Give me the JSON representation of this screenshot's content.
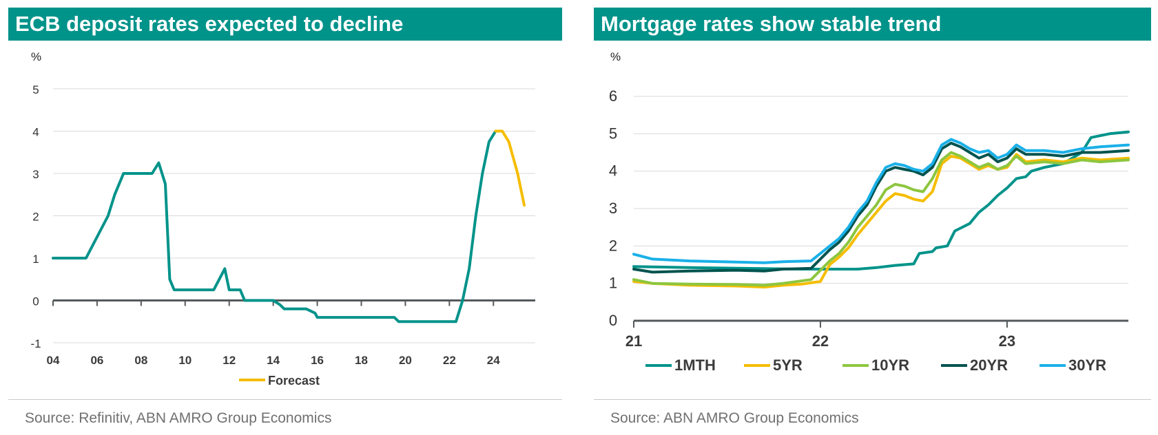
{
  "left": {
    "title": "ECB deposit rates expected to decline",
    "source": "Source: Refinitiv, ABN AMRO Group Economics"
  },
  "right": {
    "title": "Mortgage rates show stable trend",
    "source": "Source: ABN AMRO Group Economics"
  },
  "chart_data": [
    {
      "type": "line",
      "title": "ECB deposit rates expected to decline",
      "ylabel": "%",
      "xlabel": "",
      "xlim": [
        2004,
        2025.9
      ],
      "ylim": [
        -1,
        5
      ],
      "yticks": [
        -1,
        0,
        1,
        2,
        3,
        4,
        5
      ],
      "xticks": [
        2004,
        2006,
        2008,
        2010,
        2012,
        2014,
        2016,
        2018,
        2020,
        2022,
        2024
      ],
      "xtick_labels": [
        "04",
        "06",
        "08",
        "10",
        "12",
        "14",
        "16",
        "18",
        "20",
        "22",
        "24"
      ],
      "grid": true,
      "legend_position": "bottom",
      "series": [
        {
          "name": "",
          "color": "#00938a",
          "points": [
            [
              2004.0,
              1.0
            ],
            [
              2005.5,
              1.0
            ],
            [
              2006.5,
              2.0
            ],
            [
              2006.8,
              2.5
            ],
            [
              2007.2,
              3.0
            ],
            [
              2008.0,
              3.0
            ],
            [
              2008.5,
              3.0
            ],
            [
              2008.8,
              3.25
            ],
            [
              2009.1,
              2.75
            ],
            [
              2009.3,
              0.5
            ],
            [
              2009.5,
              0.25
            ],
            [
              2011.3,
              0.25
            ],
            [
              2011.8,
              0.75
            ],
            [
              2012.0,
              0.25
            ],
            [
              2012.5,
              0.25
            ],
            [
              2012.7,
              0.0
            ],
            [
              2014.0,
              0.0
            ],
            [
              2014.3,
              -0.1
            ],
            [
              2014.5,
              -0.2
            ],
            [
              2015.5,
              -0.2
            ],
            [
              2015.9,
              -0.3
            ],
            [
              2016.0,
              -0.4
            ],
            [
              2019.5,
              -0.4
            ],
            [
              2019.7,
              -0.5
            ],
            [
              2022.3,
              -0.5
            ],
            [
              2022.6,
              0.0
            ],
            [
              2022.9,
              0.75
            ],
            [
              2023.2,
              2.0
            ],
            [
              2023.5,
              3.0
            ],
            [
              2023.8,
              3.75
            ],
            [
              2024.1,
              4.0
            ]
          ]
        },
        {
          "name": "Forecast",
          "color": "#f5bd00",
          "points": [
            [
              2024.1,
              4.0
            ],
            [
              2024.4,
              4.0
            ],
            [
              2024.7,
              3.75
            ],
            [
              2025.1,
              3.0
            ],
            [
              2025.4,
              2.25
            ]
          ]
        }
      ]
    },
    {
      "type": "line",
      "title": "Mortgage rates show stable trend",
      "ylabel": "%",
      "xlabel": "",
      "xlim": [
        2021,
        2023.65
      ],
      "ylim": [
        0,
        6
      ],
      "yticks": [
        0,
        1,
        2,
        3,
        4,
        5,
        6
      ],
      "xticks": [
        2021,
        2022,
        2023
      ],
      "xtick_labels": [
        "21",
        "22",
        "23"
      ],
      "grid": true,
      "legend_position": "bottom",
      "series": [
        {
          "name": "1MTH",
          "color": "#00938a",
          "points": [
            [
              2021.0,
              1.45
            ],
            [
              2021.3,
              1.42
            ],
            [
              2021.6,
              1.4
            ],
            [
              2021.9,
              1.38
            ],
            [
              2022.0,
              1.38
            ],
            [
              2022.2,
              1.38
            ],
            [
              2022.3,
              1.42
            ],
            [
              2022.4,
              1.48
            ],
            [
              2022.5,
              1.52
            ],
            [
              2022.53,
              1.8
            ],
            [
              2022.6,
              1.85
            ],
            [
              2022.62,
              1.95
            ],
            [
              2022.68,
              2.0
            ],
            [
              2022.72,
              2.4
            ],
            [
              2022.8,
              2.6
            ],
            [
              2022.85,
              2.9
            ],
            [
              2022.9,
              3.1
            ],
            [
              2022.95,
              3.35
            ],
            [
              2023.0,
              3.55
            ],
            [
              2023.05,
              3.8
            ],
            [
              2023.1,
              3.85
            ],
            [
              2023.13,
              4.0
            ],
            [
              2023.2,
              4.1
            ],
            [
              2023.3,
              4.2
            ],
            [
              2023.4,
              4.5
            ],
            [
              2023.45,
              4.9
            ],
            [
              2023.55,
              5.0
            ],
            [
              2023.65,
              5.05
            ]
          ]
        },
        {
          "name": "5YR",
          "color": "#f5bd00",
          "points": [
            [
              2021.0,
              1.05
            ],
            [
              2021.1,
              1.0
            ],
            [
              2021.3,
              0.95
            ],
            [
              2021.55,
              0.93
            ],
            [
              2021.7,
              0.9
            ],
            [
              2021.8,
              0.95
            ],
            [
              2021.9,
              0.98
            ],
            [
              2022.0,
              1.05
            ],
            [
              2022.05,
              1.5
            ],
            [
              2022.1,
              1.7
            ],
            [
              2022.15,
              1.95
            ],
            [
              2022.2,
              2.3
            ],
            [
              2022.25,
              2.6
            ],
            [
              2022.3,
              2.9
            ],
            [
              2022.35,
              3.2
            ],
            [
              2022.4,
              3.4
            ],
            [
              2022.45,
              3.35
            ],
            [
              2022.5,
              3.25
            ],
            [
              2022.55,
              3.2
            ],
            [
              2022.6,
              3.45
            ],
            [
              2022.65,
              4.2
            ],
            [
              2022.7,
              4.4
            ],
            [
              2022.75,
              4.35
            ],
            [
              2022.8,
              4.2
            ],
            [
              2022.85,
              4.05
            ],
            [
              2022.9,
              4.15
            ],
            [
              2022.95,
              4.05
            ],
            [
              2023.0,
              4.1
            ],
            [
              2023.05,
              4.45
            ],
            [
              2023.1,
              4.25
            ],
            [
              2023.2,
              4.3
            ],
            [
              2023.3,
              4.25
            ],
            [
              2023.4,
              4.35
            ],
            [
              2023.5,
              4.3
            ],
            [
              2023.65,
              4.35
            ]
          ]
        },
        {
          "name": "10YR",
          "color": "#8dc63f",
          "points": [
            [
              2021.0,
              1.1
            ],
            [
              2021.1,
              1.0
            ],
            [
              2021.3,
              0.98
            ],
            [
              2021.55,
              0.97
            ],
            [
              2021.7,
              0.95
            ],
            [
              2021.8,
              1.0
            ],
            [
              2021.95,
              1.1
            ],
            [
              2022.05,
              1.6
            ],
            [
              2022.1,
              1.8
            ],
            [
              2022.15,
              2.1
            ],
            [
              2022.2,
              2.5
            ],
            [
              2022.25,
              2.8
            ],
            [
              2022.3,
              3.1
            ],
            [
              2022.35,
              3.5
            ],
            [
              2022.4,
              3.65
            ],
            [
              2022.45,
              3.6
            ],
            [
              2022.5,
              3.5
            ],
            [
              2022.55,
              3.45
            ],
            [
              2022.6,
              3.8
            ],
            [
              2022.65,
              4.3
            ],
            [
              2022.7,
              4.5
            ],
            [
              2022.75,
              4.4
            ],
            [
              2022.8,
              4.25
            ],
            [
              2022.85,
              4.1
            ],
            [
              2022.9,
              4.2
            ],
            [
              2022.95,
              4.05
            ],
            [
              2023.0,
              4.15
            ],
            [
              2023.05,
              4.4
            ],
            [
              2023.1,
              4.2
            ],
            [
              2023.2,
              4.25
            ],
            [
              2023.3,
              4.2
            ],
            [
              2023.4,
              4.3
            ],
            [
              2023.5,
              4.25
            ],
            [
              2023.65,
              4.3
            ]
          ]
        },
        {
          "name": "20YR",
          "color": "#00534f",
          "points": [
            [
              2021.0,
              1.38
            ],
            [
              2021.1,
              1.3
            ],
            [
              2021.3,
              1.33
            ],
            [
              2021.55,
              1.35
            ],
            [
              2021.7,
              1.33
            ],
            [
              2021.8,
              1.38
            ],
            [
              2021.95,
              1.4
            ],
            [
              2022.05,
              1.9
            ],
            [
              2022.1,
              2.1
            ],
            [
              2022.15,
              2.4
            ],
            [
              2022.2,
              2.8
            ],
            [
              2022.25,
              3.1
            ],
            [
              2022.3,
              3.6
            ],
            [
              2022.35,
              4.0
            ],
            [
              2022.4,
              4.1
            ],
            [
              2022.45,
              4.05
            ],
            [
              2022.5,
              4.0
            ],
            [
              2022.55,
              3.9
            ],
            [
              2022.6,
              4.1
            ],
            [
              2022.65,
              4.6
            ],
            [
              2022.7,
              4.75
            ],
            [
              2022.75,
              4.65
            ],
            [
              2022.8,
              4.5
            ],
            [
              2022.85,
              4.35
            ],
            [
              2022.9,
              4.45
            ],
            [
              2022.95,
              4.25
            ],
            [
              2023.0,
              4.35
            ],
            [
              2023.05,
              4.6
            ],
            [
              2023.1,
              4.45
            ],
            [
              2023.2,
              4.45
            ],
            [
              2023.3,
              4.4
            ],
            [
              2023.4,
              4.5
            ],
            [
              2023.5,
              4.5
            ],
            [
              2023.65,
              4.55
            ]
          ]
        },
        {
          "name": "30YR",
          "color": "#1ab0e8",
          "points": [
            [
              2021.0,
              1.78
            ],
            [
              2021.1,
              1.65
            ],
            [
              2021.3,
              1.6
            ],
            [
              2021.55,
              1.57
            ],
            [
              2021.7,
              1.55
            ],
            [
              2021.8,
              1.58
            ],
            [
              2021.95,
              1.6
            ],
            [
              2022.05,
              2.0
            ],
            [
              2022.1,
              2.2
            ],
            [
              2022.15,
              2.5
            ],
            [
              2022.2,
              2.9
            ],
            [
              2022.25,
              3.2
            ],
            [
              2022.3,
              3.7
            ],
            [
              2022.35,
              4.1
            ],
            [
              2022.4,
              4.2
            ],
            [
              2022.45,
              4.15
            ],
            [
              2022.5,
              4.05
            ],
            [
              2022.55,
              4.0
            ],
            [
              2022.6,
              4.2
            ],
            [
              2022.65,
              4.7
            ],
            [
              2022.7,
              4.85
            ],
            [
              2022.75,
              4.75
            ],
            [
              2022.8,
              4.6
            ],
            [
              2022.85,
              4.5
            ],
            [
              2022.9,
              4.55
            ],
            [
              2022.95,
              4.35
            ],
            [
              2023.0,
              4.45
            ],
            [
              2023.05,
              4.7
            ],
            [
              2023.1,
              4.55
            ],
            [
              2023.2,
              4.55
            ],
            [
              2023.3,
              4.5
            ],
            [
              2023.4,
              4.6
            ],
            [
              2023.5,
              4.65
            ],
            [
              2023.65,
              4.7
            ]
          ]
        }
      ]
    }
  ]
}
